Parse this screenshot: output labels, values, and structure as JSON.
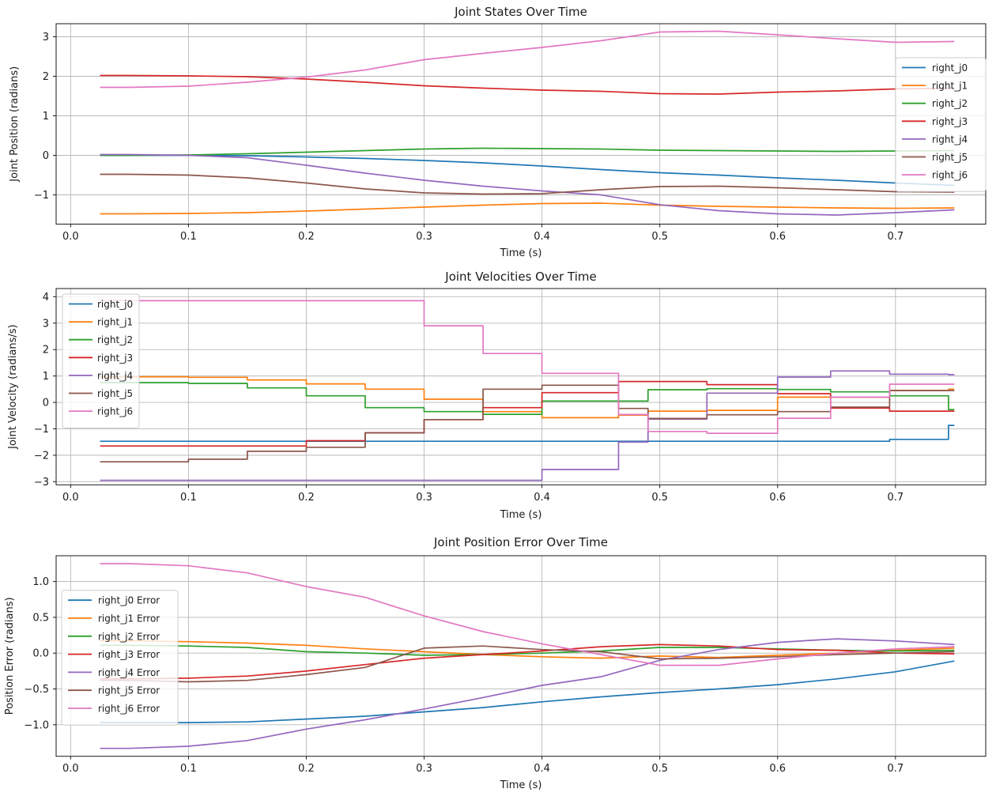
{
  "figure": {
    "background": "#ffffff",
    "grid_color": "#b8b8b8",
    "spine_color": "#1a1a1a",
    "legend_border_color": "#cccccc"
  },
  "chart_data": [
    {
      "type": "line",
      "title": "Joint States Over Time",
      "xlabel": "Time (s)",
      "ylabel": "Joint Position (radians)",
      "xlim": [
        -0.0123,
        0.7766
      ],
      "ylim": [
        -1.74,
        3.33
      ],
      "grid": true,
      "legend_position": "right",
      "xticks": {
        "values": [
          0.0,
          0.1,
          0.2,
          0.3,
          0.4,
          0.5,
          0.6,
          0.7
        ],
        "labels": [
          "0.0",
          "0.1",
          "0.2",
          "0.3",
          "0.4",
          "0.5",
          "0.6",
          "0.7"
        ]
      },
      "yticks": {
        "values": [
          3,
          2,
          1,
          0,
          -1
        ],
        "labels": [
          "3",
          "2",
          "1",
          "0",
          "−1"
        ]
      },
      "x": [
        0.025,
        0.05,
        0.1,
        0.15,
        0.2,
        0.25,
        0.3,
        0.35,
        0.4,
        0.45,
        0.5,
        0.55,
        0.6,
        0.65,
        0.7,
        0.75
      ],
      "series": [
        {
          "name": "right_j0",
          "color": "#1f77b4",
          "values": [
            0.0,
            0.0,
            0.0,
            -0.01,
            -0.04,
            -0.08,
            -0.13,
            -0.19,
            -0.27,
            -0.36,
            -0.44,
            -0.5,
            -0.57,
            -0.63,
            -0.7,
            -0.76
          ]
        },
        {
          "name": "right_j1",
          "color": "#ff7f0e",
          "values": [
            -1.48,
            -1.48,
            -1.47,
            -1.45,
            -1.41,
            -1.36,
            -1.31,
            -1.26,
            -1.22,
            -1.21,
            -1.26,
            -1.29,
            -1.31,
            -1.33,
            -1.34,
            -1.33
          ]
        },
        {
          "name": "right_j2",
          "color": "#2ca02c",
          "values": [
            0.0,
            0.0,
            0.01,
            0.04,
            0.08,
            0.12,
            0.16,
            0.18,
            0.17,
            0.16,
            0.13,
            0.12,
            0.11,
            0.1,
            0.11,
            0.12
          ]
        },
        {
          "name": "right_j3",
          "color": "#d62728",
          "values": [
            2.02,
            2.02,
            2.01,
            1.99,
            1.93,
            1.85,
            1.76,
            1.7,
            1.65,
            1.62,
            1.56,
            1.55,
            1.6,
            1.63,
            1.68,
            1.7
          ]
        },
        {
          "name": "right_j4",
          "color": "#9467bd",
          "values": [
            0.02,
            0.02,
            0.0,
            -0.06,
            -0.25,
            -0.45,
            -0.63,
            -0.78,
            -0.9,
            -1.0,
            -1.25,
            -1.4,
            -1.48,
            -1.51,
            -1.45,
            -1.38
          ]
        },
        {
          "name": "right_j5",
          "color": "#8c564b",
          "values": [
            -0.48,
            -0.48,
            -0.5,
            -0.57,
            -0.7,
            -0.85,
            -0.95,
            -0.98,
            -0.97,
            -0.87,
            -0.79,
            -0.78,
            -0.82,
            -0.87,
            -0.92,
            -0.93
          ]
        },
        {
          "name": "right_j6",
          "color": "#e377c2",
          "values": [
            1.72,
            1.72,
            1.75,
            1.85,
            1.98,
            2.16,
            2.42,
            2.58,
            2.73,
            2.9,
            3.12,
            3.14,
            3.05,
            2.95,
            2.86,
            2.88
          ]
        }
      ]
    },
    {
      "type": "step",
      "title": "Joint Velocities Over Time",
      "xlabel": "Time (s)",
      "ylabel": "Joint Velocity (radians/s)",
      "xlim": [
        -0.0123,
        0.7766
      ],
      "ylim": [
        -3.12,
        4.31
      ],
      "grid": true,
      "legend_position": "upper-left",
      "xticks": {
        "values": [
          0.0,
          0.1,
          0.2,
          0.3,
          0.4,
          0.5,
          0.6,
          0.7
        ],
        "labels": [
          "0.0",
          "0.1",
          "0.2",
          "0.3",
          "0.4",
          "0.5",
          "0.6",
          "0.7"
        ]
      },
      "yticks": {
        "values": [
          4,
          3,
          2,
          1,
          0,
          -1,
          -2,
          -3
        ],
        "labels": [
          "4",
          "3",
          "2",
          "1",
          "0",
          "−1",
          "−2",
          "−3"
        ]
      },
      "x": [
        0.025,
        0.1,
        0.15,
        0.2,
        0.25,
        0.3,
        0.35,
        0.4,
        0.465,
        0.49,
        0.54,
        0.6,
        0.645,
        0.695,
        0.745,
        0.75
      ],
      "series": [
        {
          "name": "right_j0",
          "color": "#1f77b4",
          "values": [
            -1.47,
            -1.47,
            -1.47,
            -1.47,
            -1.47,
            -1.47,
            -1.47,
            -1.47,
            -1.47,
            -1.47,
            -1.47,
            -1.47,
            -1.47,
            -1.4,
            -0.87,
            -0.87
          ]
        },
        {
          "name": "right_j1",
          "color": "#ff7f0e",
          "values": [
            0.97,
            0.95,
            0.85,
            0.7,
            0.5,
            0.12,
            -0.35,
            -0.58,
            -0.48,
            -0.33,
            -0.3,
            0.2,
            0.2,
            0.45,
            0.5,
            0.5
          ]
        },
        {
          "name": "right_j2",
          "color": "#2ca02c",
          "values": [
            0.75,
            0.72,
            0.55,
            0.25,
            -0.2,
            -0.35,
            -0.45,
            0.05,
            0.05,
            0.48,
            0.52,
            0.49,
            0.4,
            0.25,
            -0.27,
            -0.27
          ]
        },
        {
          "name": "right_j3",
          "color": "#d62728",
          "values": [
            -1.65,
            -1.65,
            -1.65,
            -1.45,
            -1.15,
            -0.65,
            -0.2,
            0.37,
            0.79,
            0.79,
            0.67,
            0.33,
            -0.21,
            -0.33,
            -0.33,
            -0.33
          ]
        },
        {
          "name": "right_j4",
          "color": "#9467bd",
          "values": [
            -2.95,
            -2.95,
            -2.95,
            -2.95,
            -2.95,
            -2.95,
            -2.95,
            -2.54,
            -1.5,
            -0.63,
            0.35,
            0.96,
            1.19,
            1.07,
            1.05,
            1.05
          ]
        },
        {
          "name": "right_j5",
          "color": "#8c564b",
          "values": [
            -2.25,
            -2.15,
            -1.85,
            -1.7,
            -1.15,
            -0.65,
            0.5,
            0.65,
            -0.23,
            -0.61,
            -0.47,
            -0.35,
            -0.18,
            0.45,
            0.45,
            0.45
          ]
        },
        {
          "name": "right_j6",
          "color": "#e377c2",
          "values": [
            3.85,
            3.85,
            3.85,
            3.85,
            3.85,
            2.9,
            1.85,
            1.1,
            -0.46,
            -1.1,
            -1.17,
            -0.6,
            0.2,
            0.69,
            0.69,
            0.69
          ]
        }
      ]
    },
    {
      "type": "line",
      "title": "Joint Position Error Over Time",
      "xlabel": "Time (s)",
      "ylabel": "Position Error (radians)",
      "xlim": [
        -0.0123,
        0.7766
      ],
      "ylim": [
        -1.44,
        1.36
      ],
      "grid": true,
      "legend_position": "center-left",
      "xticks": {
        "values": [
          0.0,
          0.1,
          0.2,
          0.3,
          0.4,
          0.5,
          0.6,
          0.7
        ],
        "labels": [
          "0.0",
          "0.1",
          "0.2",
          "0.3",
          "0.4",
          "0.5",
          "0.6",
          "0.7"
        ]
      },
      "yticks": {
        "values": [
          1.0,
          0.5,
          0.0,
          -0.5,
          -1.0
        ],
        "labels": [
          "1.0",
          "0.5",
          "0.0",
          "−0.5",
          "−1.0"
        ]
      },
      "x": [
        0.025,
        0.05,
        0.1,
        0.15,
        0.2,
        0.25,
        0.3,
        0.35,
        0.4,
        0.45,
        0.5,
        0.55,
        0.6,
        0.65,
        0.7,
        0.75
      ],
      "series": [
        {
          "name": "right_j0 Error",
          "color": "#1f77b4",
          "values": [
            -0.97,
            -0.97,
            -0.97,
            -0.96,
            -0.92,
            -0.88,
            -0.82,
            -0.76,
            -0.68,
            -0.61,
            -0.55,
            -0.5,
            -0.44,
            -0.36,
            -0.26,
            -0.11
          ]
        },
        {
          "name": "right_j1 Error",
          "color": "#ff7f0e",
          "values": [
            0.17,
            0.17,
            0.16,
            0.14,
            0.11,
            0.06,
            0.02,
            -0.02,
            -0.05,
            -0.07,
            -0.04,
            -0.06,
            -0.03,
            0.0,
            0.04,
            0.07
          ]
        },
        {
          "name": "right_j2 Error",
          "color": "#2ca02c",
          "values": [
            0.11,
            0.11,
            0.1,
            0.08,
            0.02,
            0.0,
            -0.03,
            -0.02,
            0.0,
            0.03,
            0.08,
            0.08,
            0.06,
            0.04,
            0.03,
            0.04
          ]
        },
        {
          "name": "right_j3 Error",
          "color": "#d62728",
          "values": [
            -0.36,
            -0.36,
            -0.35,
            -0.32,
            -0.25,
            -0.16,
            -0.07,
            -0.02,
            0.03,
            0.09,
            0.12,
            0.1,
            0.05,
            0.04,
            0.0,
            -0.01
          ]
        },
        {
          "name": "right_j4 Error",
          "color": "#9467bd",
          "values": [
            -1.33,
            -1.33,
            -1.3,
            -1.22,
            -1.06,
            -0.93,
            -0.78,
            -0.62,
            -0.45,
            -0.33,
            -0.1,
            0.05,
            0.15,
            0.2,
            0.17,
            0.12
          ]
        },
        {
          "name": "right_j5 Error",
          "color": "#8c564b",
          "values": [
            -0.38,
            -0.38,
            -0.4,
            -0.38,
            -0.3,
            -0.2,
            0.07,
            0.1,
            0.05,
            0.02,
            -0.08,
            -0.07,
            -0.05,
            -0.02,
            0.0,
            0.02
          ]
        },
        {
          "name": "right_j6 Error",
          "color": "#e377c2",
          "values": [
            1.25,
            1.25,
            1.22,
            1.12,
            0.93,
            0.78,
            0.52,
            0.3,
            0.13,
            -0.02,
            -0.17,
            -0.17,
            -0.08,
            0.0,
            0.06,
            0.09
          ]
        }
      ]
    }
  ]
}
